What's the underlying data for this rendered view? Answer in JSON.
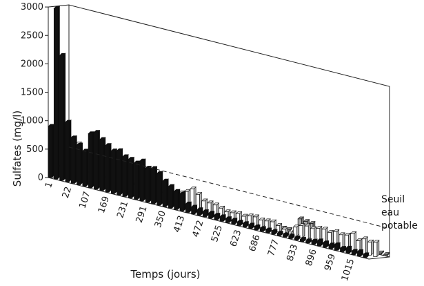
{
  "chart_data": {
    "type": "bar",
    "projection": "3d",
    "xlabel": "Temps (jours)",
    "ylabel": "Sulfates (mg/l)",
    "ylim": [
      0,
      3000
    ],
    "yticks": [
      0,
      500,
      1000,
      1500,
      2000,
      2500,
      3000
    ],
    "x_tick_labels": [
      "1",
      "22",
      "107",
      "169",
      "231",
      "291",
      "350",
      "413",
      "472",
      "525",
      "623",
      "686",
      "777",
      "833",
      "896",
      "959",
      "1015"
    ],
    "threshold": {
      "label": "Seuil eau potable",
      "value": 500
    },
    "series": [
      {
        "color": "#111111",
        "values": [
          900,
          3000,
          2200,
          1050,
          800,
          700,
          620,
          950,
          1000,
          900,
          820,
          750,
          780,
          700,
          680,
          640,
          700,
          600,
          620,
          560,
          450,
          380,
          320,
          300,
          150,
          120,
          100,
          90,
          90,
          80,
          80,
          70,
          70,
          60,
          60,
          60,
          55,
          50,
          50,
          50,
          45,
          45,
          45,
          40,
          40,
          40,
          60,
          90,
          80,
          70,
          100,
          60,
          90,
          60,
          80,
          50
        ]
      },
      {
        "color": "#ffffff",
        "values": [
          180,
          650,
          720,
          650,
          220,
          200,
          220,
          180,
          190,
          170,
          230,
          280,
          290,
          190,
          200,
          310,
          220,
          210,
          180,
          230,
          210,
          250,
          300,
          370,
          300,
          210,
          200,
          190,
          160,
          120,
          130,
          140,
          120,
          150,
          160,
          130,
          140,
          150,
          110,
          70,
          30,
          160,
          210,
          230,
          210,
          240,
          250,
          220,
          260,
          230,
          250,
          300,
          200,
          260,
          230,
          250
        ]
      },
      {
        "color": "#a8a8a8",
        "values": [
          70,
          40,
          30,
          25,
          20,
          20,
          20,
          20,
          20,
          20,
          20,
          20,
          20,
          20,
          20,
          20,
          20,
          20,
          20,
          20,
          20,
          20,
          20,
          20,
          20,
          20,
          20,
          20,
          20,
          20,
          20,
          20,
          20,
          20,
          20,
          20,
          20,
          20,
          20,
          20,
          260,
          240,
          230,
          20,
          20,
          20,
          20,
          20,
          20,
          20,
          20,
          20,
          20,
          20,
          20,
          20
        ]
      }
    ]
  }
}
